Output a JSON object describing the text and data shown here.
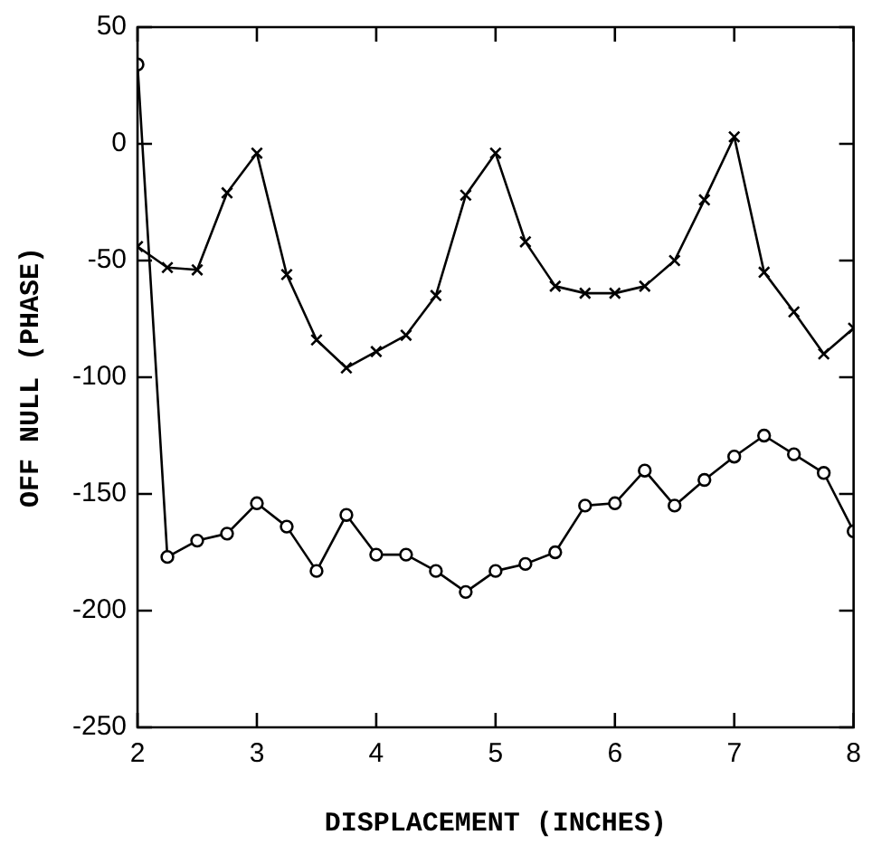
{
  "chart_data": {
    "type": "line",
    "xlabel": "DISPLACEMENT (INCHES)",
    "ylabel": "OFF NULL (PHASE)",
    "x": [
      2,
      2.25,
      2.5,
      2.75,
      3,
      3.25,
      3.5,
      3.75,
      4,
      4.25,
      4.5,
      4.75,
      5,
      5.25,
      5.5,
      5.75,
      6,
      6.25,
      6.5,
      6.75,
      7,
      7.25,
      7.5,
      7.75,
      8
    ],
    "series": [
      {
        "color": "#000000",
        "marker": "cross",
        "values": [
          -44,
          -53,
          -54,
          -21,
          -4,
          -56,
          -84,
          -96,
          -89,
          -82,
          -65,
          -22,
          -4,
          -42,
          -61,
          -64,
          -64,
          -61,
          -50,
          -24,
          3,
          -55,
          -72,
          -90,
          -79
        ]
      },
      {
        "color": "#000000",
        "marker": "circle",
        "values": [
          34,
          -177,
          -170,
          -167,
          -154,
          -164,
          -183,
          -159,
          -176,
          -176,
          -183,
          -192,
          -183,
          -180,
          -175,
          -155,
          -154,
          -140,
          -155,
          -144,
          -134,
          -125,
          -133,
          -141,
          -166
        ]
      }
    ],
    "xlim": [
      2,
      8
    ],
    "xticks": [
      2,
      3,
      4,
      5,
      6,
      7,
      8
    ],
    "ylim": [
      -250,
      50
    ],
    "yticks": [
      -250,
      -200,
      -150,
      -100,
      -50,
      0,
      50
    ],
    "grid": false,
    "legend": false,
    "line_style": "solid"
  }
}
